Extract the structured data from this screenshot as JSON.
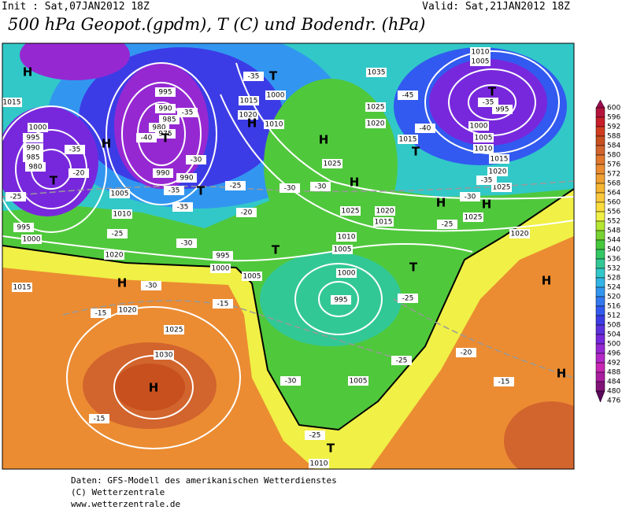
{
  "header": {
    "init": "Init : Sat,07JAN2012 18Z",
    "valid": "Valid: Sat,21JAN2012 18Z",
    "title": "500 hPa Geopot.(gpdm), T (C) und Bodendr. (hPa)"
  },
  "map": {
    "pressure_centers": [
      "H",
      "H",
      "H",
      "H",
      "H",
      "H",
      "H",
      "H",
      "H",
      "H",
      "H",
      "T",
      "T",
      "T",
      "T",
      "T",
      "T",
      "T",
      "T",
      "T"
    ],
    "isobar_labels": [
      995,
      990,
      985,
      980,
      975,
      1000,
      995,
      990,
      985,
      980,
      1015,
      1005,
      1010,
      995,
      1000,
      1020,
      1015,
      1020,
      1025,
      1030,
      990,
      990,
      1015,
      1020,
      1000,
      1010,
      1035,
      1025,
      1020,
      1015,
      1010,
      1005,
      995,
      1000,
      1005,
      1010,
      1015,
      1020,
      1025,
      1025,
      1025,
      1020,
      1015,
      1010,
      1005,
      1025,
      1020,
      995,
      1000,
      1005,
      1000,
      995,
      1005,
      1010
    ],
    "temperature_labels": [
      -35,
      -35,
      -40,
      -35,
      -20,
      -25,
      -30,
      -35,
      -35,
      -25,
      -20,
      -25,
      -30,
      -30,
      -30,
      -45,
      -40,
      -35,
      -35,
      -30,
      -25,
      -30,
      -15,
      -15,
      -25,
      -20,
      -15,
      -25,
      -30,
      -15,
      -25
    ]
  },
  "colorbar": {
    "ticks": [
      600,
      596,
      592,
      588,
      584,
      580,
      576,
      572,
      568,
      564,
      560,
      556,
      552,
      548,
      544,
      540,
      536,
      532,
      528,
      524,
      520,
      516,
      512,
      508,
      504,
      500,
      496,
      492,
      488,
      484,
      480,
      476
    ],
    "colors": [
      "#9c0a4e",
      "#b4143c",
      "#c81e28",
      "#d23c1e",
      "#c8501e",
      "#d2642d",
      "#e1782d",
      "#eb8c32",
      "#f0a032",
      "#f5b432",
      "#fac83c",
      "#fadc3c",
      "#f0f046",
      "#b4e632",
      "#78d232",
      "#46c83c",
      "#32c864",
      "#32c896",
      "#32c8c8",
      "#32b4e6",
      "#3296f0",
      "#3278f0",
      "#325af0",
      "#3c3ce6",
      "#5a32dc",
      "#7828dc",
      "#9628d2",
      "#b428c8",
      "#c828b4",
      "#aa1ea0",
      "#821478",
      "#5a0a5a"
    ]
  },
  "footer": {
    "lines": [
      "Daten: GFS-Modell des amerikanischen Wetterdienstes",
      "(C) Wetterzentrale",
      "www.wetterzentrale.de"
    ]
  }
}
